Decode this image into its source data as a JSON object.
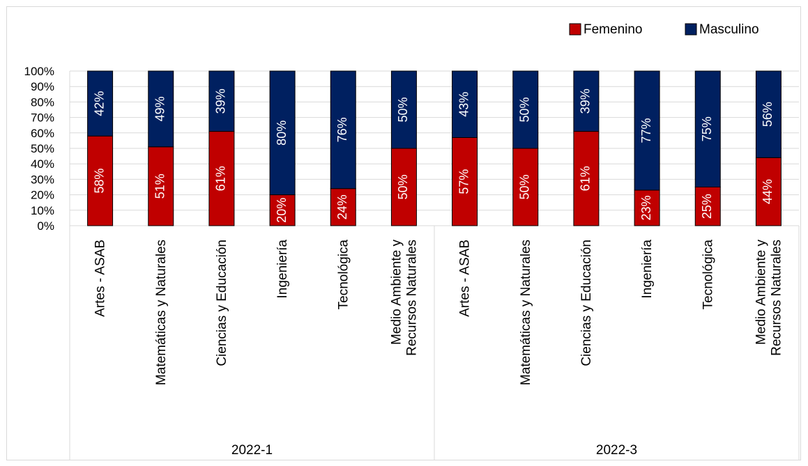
{
  "chart_data": {
    "type": "bar",
    "stacked": true,
    "percent_stacked": true,
    "groups": [
      "2022-1",
      "2022-3"
    ],
    "categories": [
      {
        "group": "2022-1",
        "label": [
          "Artes - ASAB"
        ]
      },
      {
        "group": "2022-1",
        "label": [
          "Matemáticas y Naturales"
        ]
      },
      {
        "group": "2022-1",
        "label": [
          "Ciencias y Educación"
        ]
      },
      {
        "group": "2022-1",
        "label": [
          "Ingeniería"
        ]
      },
      {
        "group": "2022-1",
        "label": [
          "Tecnológica"
        ]
      },
      {
        "group": "2022-1",
        "label": [
          "Medio Ambiente y",
          "Recursos Naturales"
        ]
      },
      {
        "group": "2022-3",
        "label": [
          "Artes - ASAB"
        ]
      },
      {
        "group": "2022-3",
        "label": [
          "Matemáticas y Naturales"
        ]
      },
      {
        "group": "2022-3",
        "label": [
          "Ciencias y Educación"
        ]
      },
      {
        "group": "2022-3",
        "label": [
          "Ingeniería"
        ]
      },
      {
        "group": "2022-3",
        "label": [
          "Tecnológica"
        ]
      },
      {
        "group": "2022-3",
        "label": [
          "Medio Ambiente y",
          "Recursos Naturales"
        ]
      }
    ],
    "series": [
      {
        "name": "Femenino",
        "color": "#c00000",
        "values": [
          58,
          51,
          61,
          20,
          24,
          50,
          57,
          50,
          61,
          23,
          25,
          44
        ],
        "labels": [
          "58%",
          "51%",
          "61%",
          "20%",
          "24%",
          "50%",
          "57%",
          "50%",
          "61%",
          "23%",
          "25%",
          "44%"
        ]
      },
      {
        "name": "Masculino",
        "color": "#002060",
        "values": [
          42,
          49,
          39,
          80,
          76,
          50,
          43,
          50,
          39,
          77,
          75,
          56
        ],
        "labels": [
          "42%",
          "49%",
          "39%",
          "80%",
          "76%",
          "50%",
          "43%",
          "50%",
          "39%",
          "77%",
          "75%",
          "56%"
        ]
      }
    ],
    "ylim": [
      0,
      100
    ],
    "yticks": [
      "0%",
      "10%",
      "20%",
      "30%",
      "40%",
      "50%",
      "60%",
      "70%",
      "80%",
      "90%",
      "100%"
    ],
    "grid": true,
    "legend_position": "top-right",
    "title": "",
    "xlabel": "",
    "ylabel": ""
  }
}
